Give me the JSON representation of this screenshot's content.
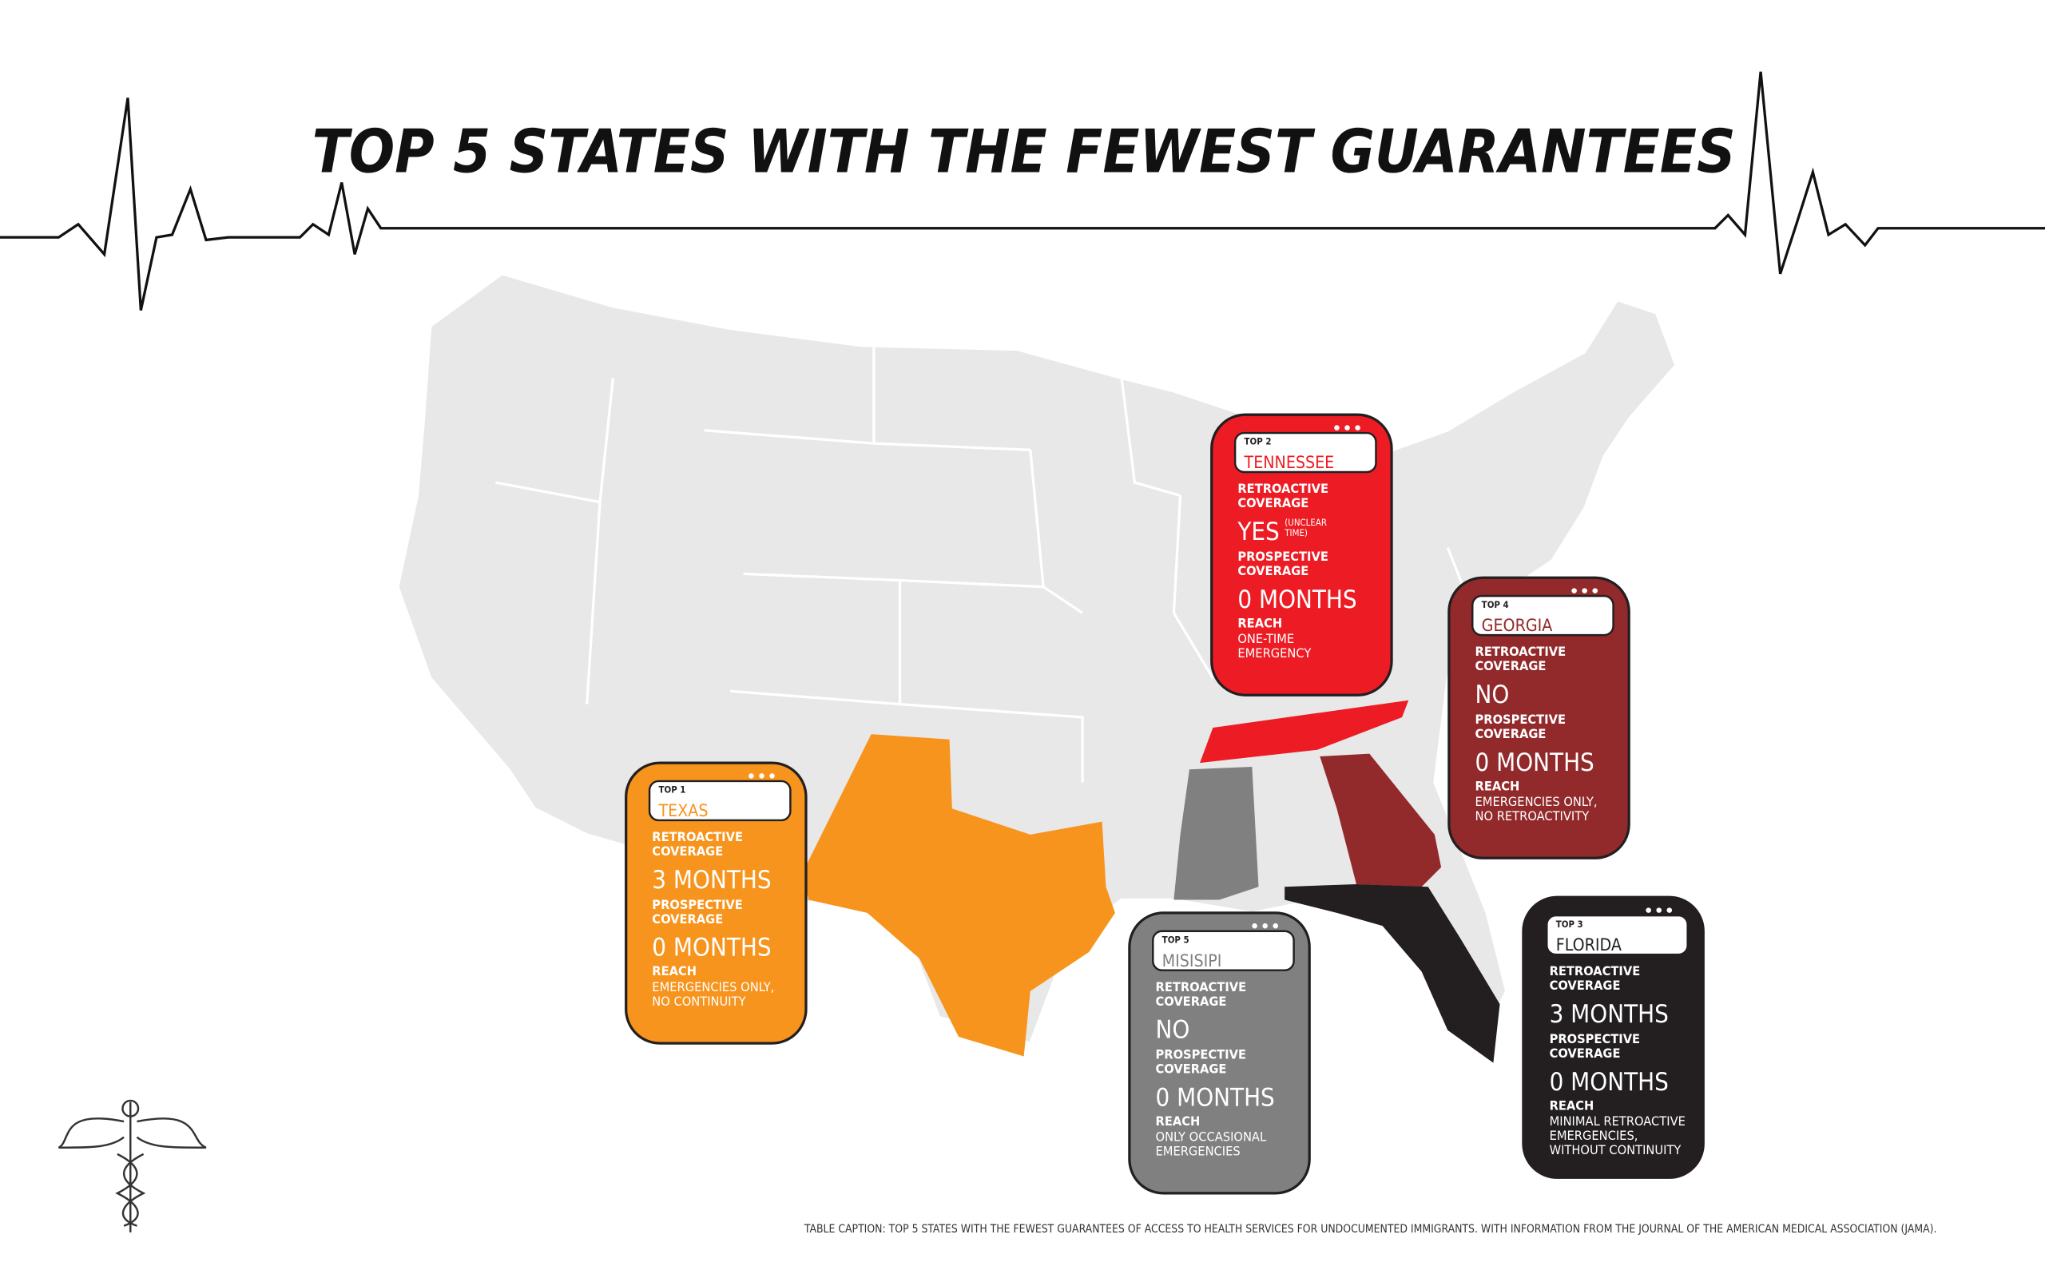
{
  "title": "TOP 5 STATES WITH THE FEWEST GUARANTEES",
  "cards": [
    {
      "rank": "TOP 1",
      "state": "TEXAS",
      "color": "#f7941d",
      "retroactive_label": [
        "RETROACTIVE",
        "COVERAGE"
      ],
      "retroactive": "3 MONTHS",
      "prospective_label": [
        "PROSPECTIVE",
        "COVERAGE"
      ],
      "prospective": "0 MONTHS",
      "reach_label": "REACH",
      "reach": [
        "EMERGENCIES ONLY,",
        "NO CONTINUITY"
      ]
    },
    {
      "rank": "TOP 2",
      "state": "TENNESSEE",
      "color": "#ed1c24",
      "retroactive_label": [
        "RETROACTIVE",
        "COVERAGE"
      ],
      "retroactive": "YES",
      "retroactive_note": [
        "(UNCLEAR",
        "TIME)"
      ],
      "prospective_label": [
        "PROSPECTIVE",
        "COVERAGE"
      ],
      "prospective": "0 MONTHS",
      "reach_label": "REACH",
      "reach": [
        "ONE-TIME",
        "EMERGENCY"
      ]
    },
    {
      "rank": "TOP 4",
      "state": "GEORGIA",
      "color": "#92292b",
      "retroactive_label": [
        "RETROACTIVE",
        "COVERAGE"
      ],
      "retroactive": "NO",
      "prospective_label": [
        "PROSPECTIVE",
        "COVERAGE"
      ],
      "prospective": "0 MONTHS",
      "reach_label": "REACH",
      "reach": [
        "EMERGENCIES ONLY,",
        "NO RETROACTIVITY"
      ]
    },
    {
      "rank": "TOP 5",
      "state": "MISISIPI",
      "color": "#808080",
      "retroactive_label": [
        "RETROACTIVE",
        "COVERAGE"
      ],
      "retroactive": "NO",
      "prospective_label": [
        "PROSPECTIVE",
        "COVERAGE"
      ],
      "prospective": "0 MONTHS",
      "reach_label": "REACH",
      "reach": [
        "ONLY OCCASIONAL",
        "EMERGENCIES"
      ]
    },
    {
      "rank": "TOP 3",
      "state": "FLORIDA",
      "color": "#231f20",
      "retroactive_label": [
        "RETROACTIVE",
        "COVERAGE"
      ],
      "retroactive": "3 MONTHS",
      "prospective_label": [
        "PROSPECTIVE",
        "COVERAGE"
      ],
      "prospective": "0 MONTHS",
      "reach_label": "REACH",
      "reach": [
        "MINIMAL RETROACTIVE",
        "EMERGENCIES,",
        "WITHOUT CONTINUITY"
      ]
    }
  ],
  "caption": "TABLE CAPTION: TOP 5 STATES WITH THE FEWEST GUARANTEES OF ACCESS TO HEALTH SERVICES FOR UNDOCUMENTED IMMIGRANTS. WITH INFORMATION FROM THE JOURNAL OF THE AMERICAN MEDICAL ASSOCIATION (JAMA)."
}
